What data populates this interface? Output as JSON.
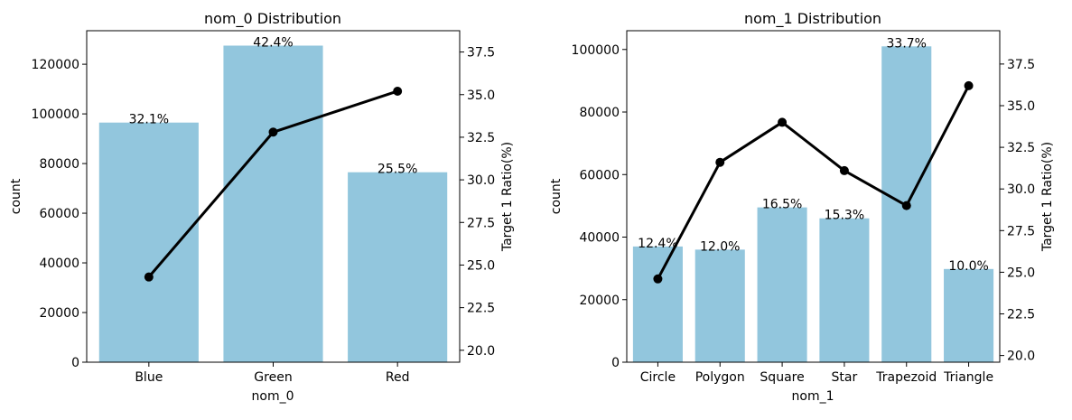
{
  "chart_data": [
    {
      "type": "bar",
      "title": "nom_0 Distribution",
      "xlabel": "nom_0",
      "ylabel": "count",
      "ylabel_right": "Target 1 Ratio(%)",
      "categories": [
        "Blue",
        "Green",
        "Red"
      ],
      "values": [
        96500,
        127500,
        76500
      ],
      "bar_labels": [
        "32.1%",
        "42.4%",
        "25.5%"
      ],
      "ratio_values": [
        24.3,
        32.8,
        35.2
      ],
      "ylim": [
        0,
        133500
      ],
      "yticks": [
        0,
        20000,
        40000,
        60000,
        80000,
        100000,
        120000
      ],
      "ylim_right": [
        19.3,
        38.75
      ],
      "yticks_right": [
        20.0,
        22.5,
        25.0,
        27.5,
        30.0,
        32.5,
        35.0,
        37.5
      ],
      "bar_color": "#92c6dd",
      "line_color": "#000000",
      "grid": false
    },
    {
      "type": "bar",
      "title": "nom_1 Distribution",
      "xlabel": "nom_1",
      "ylabel": "count",
      "ylabel_right": "Target 1 Ratio(%)",
      "categories": [
        "Circle",
        "Polygon",
        "Square",
        "Star",
        "Trapezoid",
        "Triangle"
      ],
      "values": [
        37000,
        36000,
        49500,
        46000,
        101000,
        29800
      ],
      "bar_labels": [
        "12.4%",
        "12.0%",
        "16.5%",
        "15.3%",
        "33.7%",
        "10.0%"
      ],
      "ratio_values": [
        24.6,
        31.6,
        34.0,
        31.1,
        29.0,
        36.2
      ],
      "ylim": [
        0,
        106000
      ],
      "yticks": [
        0,
        20000,
        40000,
        60000,
        80000,
        100000
      ],
      "ylim_right": [
        19.6,
        39.5
      ],
      "yticks_right": [
        20.0,
        22.5,
        25.0,
        27.5,
        30.0,
        32.5,
        35.0,
        37.5
      ],
      "bar_color": "#92c6dd",
      "line_color": "#000000",
      "grid": false
    }
  ]
}
